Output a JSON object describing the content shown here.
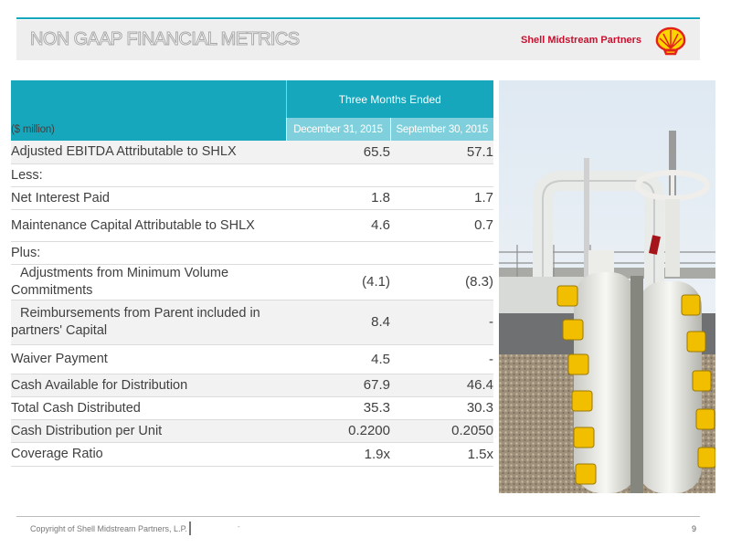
{
  "header": {
    "title": "NON GAAP FINANCIAL METRICS",
    "brand": "Shell Midstream Partners"
  },
  "table": {
    "period_header": "Three Months Ended",
    "unit_label": "($ million)",
    "columns": [
      "December 31, 2015",
      "September 30, 2015"
    ],
    "rows": [
      {
        "label": "Adjusted EBITDA Attributable to SHLX",
        "q4": "65.5",
        "q3": "57.1"
      },
      {
        "label": "Less:",
        "q4": "",
        "q3": ""
      },
      {
        "label": "Net Interest Paid",
        "q4": "1.8",
        "q3": "1.7"
      },
      {
        "label": "Maintenance Capital Attributable to SHLX",
        "q4": "4.6",
        "q3": "0.7"
      },
      {
        "label": "Plus:",
        "q4": "",
        "q3": ""
      },
      {
        "label": "Adjustments from Minimum Volume Commitments",
        "q4": "(4.1)",
        "q3": "(8.3)"
      },
      {
        "label": "Reimbursements from Parent included in partners' Capital",
        "q4": "8.4",
        "q3": "-"
      },
      {
        "label": "Waiver Payment",
        "q4": "4.5",
        "q3": "-"
      },
      {
        "label": "Cash Available for Distribution",
        "q4": "67.9",
        "q3": "46.4"
      },
      {
        "label": "Total Cash Distributed",
        "q4": "35.3",
        "q3": "30.3"
      },
      {
        "label": "Cash Distribution per Unit",
        "q4": "0.2200",
        "q3": "0.2050"
      },
      {
        "label": "Coverage Ratio",
        "q4": "1.9x",
        "q3": "1.5x"
      }
    ]
  },
  "footer": {
    "copyright": "Copyright of Shell Midstream Partners, L.P.",
    "separator_mark": "-",
    "page_number": "9"
  },
  "colors": {
    "accent": "#16a7bd",
    "accent_light": "#7fd0dc",
    "brand_red": "#c8102e",
    "shell_yellow": "#ffd500"
  },
  "icons": {
    "logo": "shell-pecten-logo",
    "photo": "pipeline-valve-photo"
  }
}
